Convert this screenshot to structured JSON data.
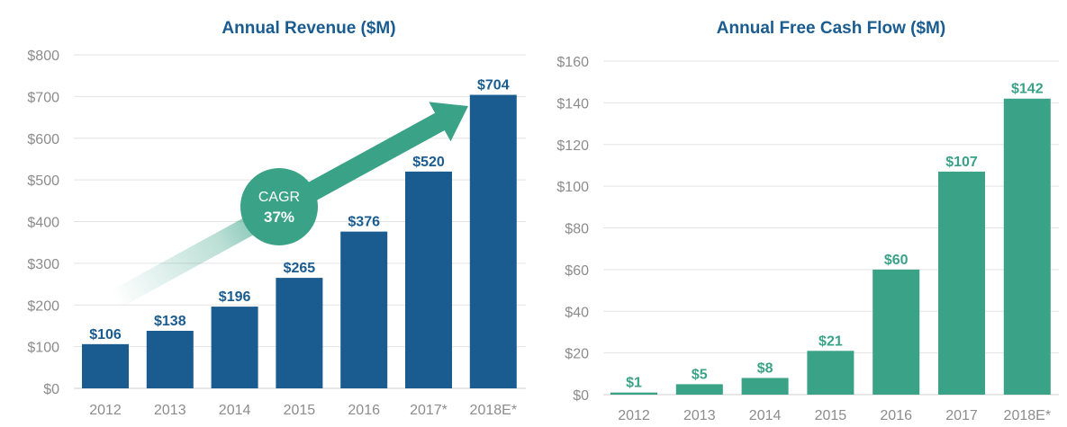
{
  "colors": {
    "revenue_bar": "#1a5c8f",
    "revenue_title": "#1a5c8f",
    "fcf_bar": "#3aa287",
    "fcf_label": "#3aa287",
    "fcf_title": "#1a5c8f",
    "axis_text": "#8c8c8c",
    "grid": "#e3e3e3",
    "arrow": "#3aa287"
  },
  "chart_data": [
    {
      "type": "bar",
      "title": "Annual Revenue ($M)",
      "categories": [
        "2012",
        "2013",
        "2014",
        "2015",
        "2016",
        "2017*",
        "2018E*"
      ],
      "values": [
        106,
        138,
        196,
        265,
        376,
        520,
        704
      ],
      "data_labels": [
        "$106",
        "$138",
        "$196",
        "$265",
        "$376",
        "$520",
        "$704"
      ],
      "y_ticks": [
        "$0",
        "$100",
        "$200",
        "$300",
        "$400",
        "$500",
        "$600",
        "$700",
        "$800"
      ],
      "ylim": [
        0,
        800
      ],
      "grid": true,
      "annotation": {
        "line1": "CAGR",
        "line2": "37%"
      }
    },
    {
      "type": "bar",
      "title": "Annual Free Cash Flow ($M)",
      "categories": [
        "2012",
        "2013",
        "2014",
        "2015",
        "2016",
        "2017",
        "2018E*"
      ],
      "values": [
        1,
        5,
        8,
        21,
        60,
        107,
        142
      ],
      "data_labels": [
        "$1",
        "$5",
        "$8",
        "$21",
        "$60",
        "$107",
        "$142"
      ],
      "y_ticks": [
        "$0",
        "$20",
        "$40",
        "$60",
        "$80",
        "$100",
        "$120",
        "$140",
        "$160"
      ],
      "ylim": [
        0,
        160
      ],
      "grid": true
    }
  ]
}
